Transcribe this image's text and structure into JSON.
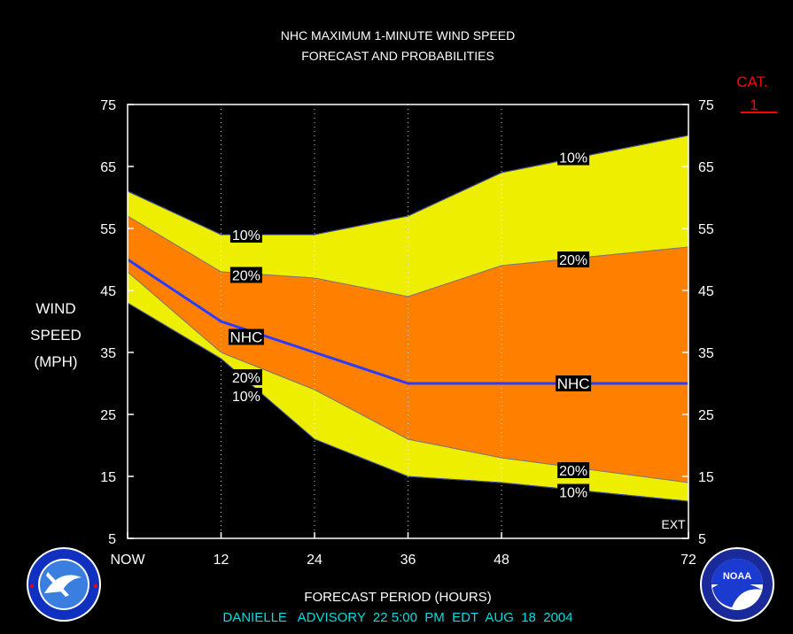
{
  "chart_data": {
    "type": "area",
    "title": "NHC MAXIMUM 1-MINUTE WIND SPEED",
    "subtitle": "FORECAST AND PROBABILITIES",
    "xlabel": "FORECAST PERIOD (HOURS)",
    "ylabel": [
      "WIND",
      "SPEED",
      "(MPH)"
    ],
    "x_tick_labels": [
      "NOW",
      "12",
      "24",
      "36",
      "48",
      "72"
    ],
    "x_ticks": [
      0,
      12,
      24,
      36,
      48,
      72
    ],
    "y_ticks": [
      5,
      15,
      25,
      35,
      45,
      55,
      65,
      75
    ],
    "ylim": [
      5,
      75
    ],
    "xlim": [
      0,
      72
    ],
    "x": [
      0,
      12,
      24,
      36,
      48,
      60,
      72
    ],
    "series": [
      {
        "name": "10%",
        "values": [
          61,
          54,
          54,
          57,
          64,
          67,
          70
        ]
      },
      {
        "name": "20%",
        "values": [
          57,
          48,
          47,
          44,
          49,
          50.5,
          52
        ]
      },
      {
        "name": "NHC",
        "values": [
          50,
          40,
          35,
          30,
          30,
          30,
          30
        ]
      },
      {
        "name": "20%",
        "values": [
          48,
          35,
          29,
          21,
          18,
          16,
          14
        ]
      },
      {
        "name": "10%",
        "values": [
          43,
          34,
          21,
          15,
          14,
          12.5,
          11
        ]
      }
    ],
    "labels": [
      {
        "text": "10%",
        "x": 15,
        "y": 54
      },
      {
        "text": "20%",
        "x": 15,
        "y": 47.5
      },
      {
        "text": "NHC",
        "x": 15,
        "y": 37.5
      },
      {
        "text": "20%",
        "x": 15,
        "y": 31
      },
      {
        "text": "10%",
        "x": 15,
        "y": 28
      },
      {
        "text": "10%",
        "x": 57,
        "y": 66.5
      },
      {
        "text": "20%",
        "x": 57,
        "y": 50
      },
      {
        "text": "NHC",
        "x": 57,
        "y": 30
      },
      {
        "text": "20%",
        "x": 57,
        "y": 16
      },
      {
        "text": "10%",
        "x": 57,
        "y": 12.5
      }
    ],
    "ext_label": "EXT",
    "category_title": "CAT.",
    "category_value": "1",
    "colors": {
      "band_10": "#eeee00",
      "band_20": "#ff8000",
      "nhc_line": "#2a3cff",
      "category": "#ff0000",
      "advisory": "#00dddd"
    }
  },
  "advisory": "DANIELLE   ADVISORY  22 5:00  PM  EDT  AUG  18  2004",
  "logos": {
    "left": "nws-logo",
    "right": "noaa-logo"
  }
}
